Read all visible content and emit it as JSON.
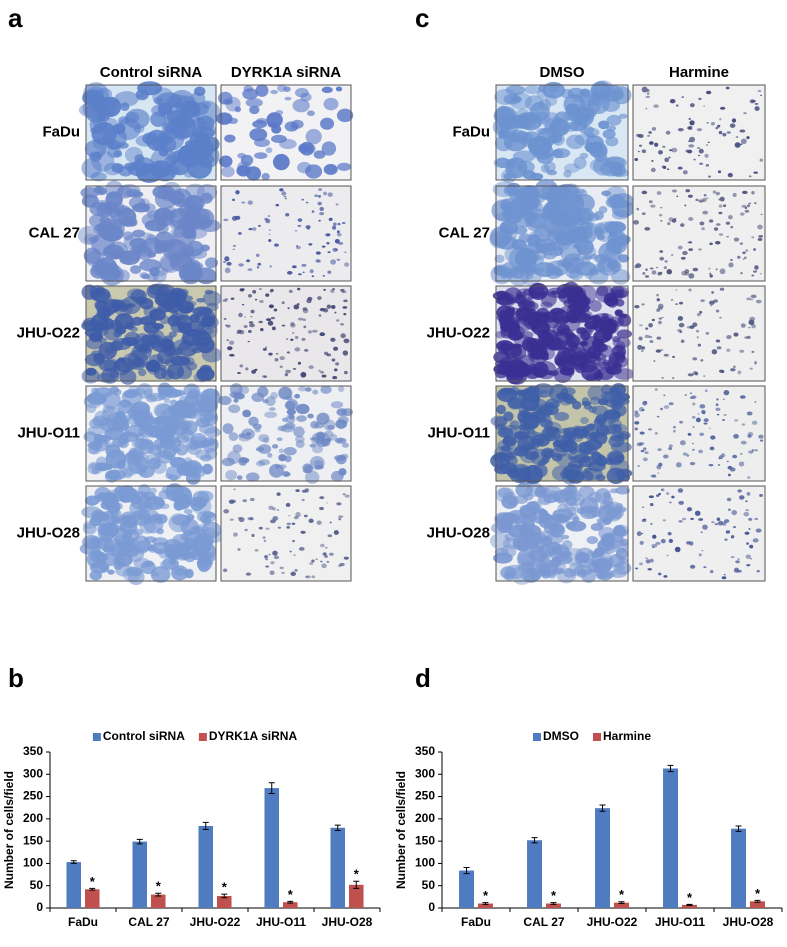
{
  "panels": [
    {
      "letter": "a",
      "columns": [
        "Control siRNA",
        "DYRK1A siRNA"
      ],
      "rows": [
        "FaDu",
        "CAL 27",
        "JHU-O22",
        "JHU-O11",
        "JHU-O28"
      ]
    },
    {
      "letter": "c",
      "columns": [
        "DMSO",
        "Harmine"
      ],
      "rows": [
        "FaDu",
        "CAL 27",
        "JHU-O22",
        "JHU-O11",
        "JHU-O28"
      ]
    }
  ],
  "chart_data": [
    {
      "type": "bar",
      "panel": "b",
      "y_label": "Number of cells/field",
      "categories": [
        "FaDu",
        "CAL 27",
        "JHU-O22",
        "JHU-O11",
        "JHU-O28"
      ],
      "series": [
        {
          "name": "Control siRNA",
          "color": "#4f7bc0",
          "values": [
            103,
            149,
            184,
            269,
            180
          ],
          "errors": [
            3,
            5,
            8,
            12,
            6
          ]
        },
        {
          "name": "DYRK1A siRNA",
          "color": "#c0504d",
          "values": [
            42,
            30,
            27,
            13,
            52
          ],
          "errors": [
            2,
            3,
            4,
            2,
            8
          ]
        }
      ],
      "annotations": [
        "*",
        "*",
        "*",
        "*",
        "*"
      ],
      "ylim": [
        0,
        350
      ],
      "yticks": [
        0,
        50,
        100,
        150,
        200,
        250,
        300,
        350
      ],
      "legend": "top"
    },
    {
      "type": "bar",
      "panel": "d",
      "y_label": "Number of cells/field",
      "categories": [
        "FaDu",
        "CAL 27",
        "JHU-O22",
        "JHU-O11",
        "JHU-O28"
      ],
      "series": [
        {
          "name": "DMSO",
          "color": "#4f7bc0",
          "values": [
            84,
            152,
            224,
            313,
            178
          ],
          "errors": [
            7,
            6,
            7,
            7,
            6
          ]
        },
        {
          "name": "Harmine",
          "color": "#c0504d",
          "values": [
            10,
            10,
            12,
            7,
            15
          ],
          "errors": [
            2,
            2,
            2,
            1,
            2
          ]
        }
      ],
      "annotations": [
        "*",
        "*",
        "*",
        "*",
        "*"
      ],
      "ylim": [
        0,
        350
      ],
      "yticks": [
        0,
        50,
        100,
        150,
        200,
        250,
        300,
        350
      ],
      "legend": "top"
    }
  ]
}
